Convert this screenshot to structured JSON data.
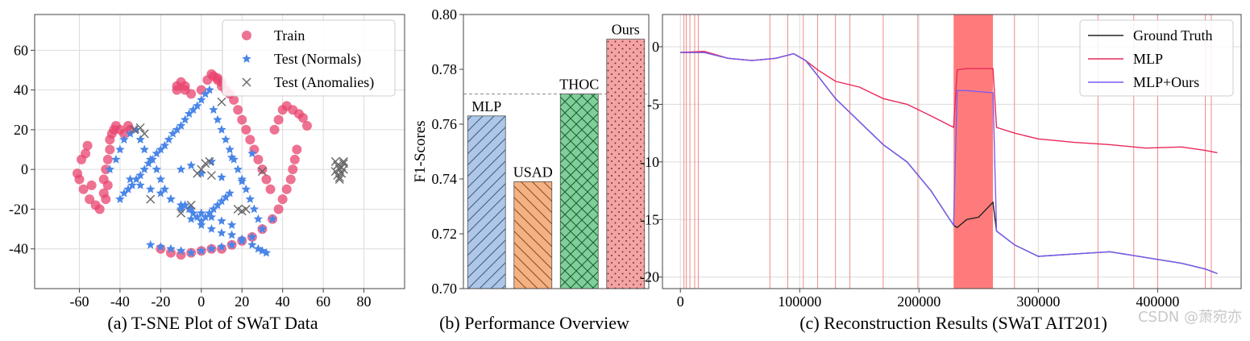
{
  "chart_data": [
    {
      "type": "scatter",
      "title": "(a) T-SNE Plot of SWaT Data",
      "xlim": [
        -82,
        100
      ],
      "ylim": [
        -60,
        78
      ],
      "xticks": [
        -60,
        -40,
        -20,
        0,
        20,
        40,
        60,
        80
      ],
      "yticks": [
        -40,
        -20,
        0,
        20,
        40,
        60
      ],
      "grid": true,
      "legend": {
        "position": "top-right"
      },
      "series": [
        {
          "name": "Train",
          "marker": "circle",
          "color": "#e8436e",
          "x": [
            -60,
            -58,
            -55,
            -52,
            -50,
            -48,
            -48,
            -47,
            -46,
            -45,
            -45,
            -44,
            -43,
            -42,
            -40,
            -38,
            -36,
            -35,
            -12,
            -8,
            -5,
            0,
            3,
            6,
            8,
            10,
            12,
            14,
            16,
            18,
            20,
            22,
            24,
            26,
            28,
            30,
            32,
            34,
            36,
            38,
            40,
            42,
            45,
            48,
            50,
            52,
            -20,
            -15,
            -10,
            -5,
            0,
            5,
            10,
            15,
            20,
            25,
            30,
            35,
            38,
            40,
            42,
            44,
            45,
            46,
            47,
            -12,
            -10,
            -8,
            5,
            8,
            10,
            -61,
            -59,
            -57,
            -56,
            -54,
            -47,
            -46
          ],
          "y": [
            -5,
            -10,
            -15,
            -18,
            -20,
            -12,
            -5,
            0,
            5,
            10,
            15,
            18,
            20,
            22,
            20,
            18,
            22,
            20,
            40,
            42,
            38,
            40,
            45,
            47,
            45,
            42,
            40,
            38,
            35,
            30,
            25,
            20,
            15,
            10,
            5,
            0,
            -5,
            -10,
            20,
            25,
            30,
            32,
            30,
            28,
            26,
            22,
            -40,
            -42,
            -43,
            -42,
            -41,
            -40,
            -40,
            -38,
            -36,
            -34,
            -30,
            -25,
            -20,
            -15,
            -10,
            -5,
            0,
            5,
            10,
            42,
            44,
            40,
            48,
            46,
            44,
            -2,
            5,
            8,
            12,
            -8,
            -15,
            -8
          ]
        },
        {
          "name": "Test (Normals)",
          "marker": "star",
          "color": "#4a86e8",
          "x": [
            -45,
            -42,
            -40,
            -38,
            -35,
            -32,
            -30,
            -28,
            -25,
            -22,
            -20,
            -18,
            -15,
            -10,
            -5,
            0,
            5,
            10,
            15,
            20,
            25,
            28,
            30,
            32,
            -35,
            -30,
            -25,
            -20,
            -15,
            -10,
            -5,
            0,
            5,
            10,
            15,
            -40,
            -38,
            -36,
            -34,
            -32,
            -30,
            -28,
            -26,
            -24,
            -22,
            -20,
            -18,
            -16,
            -14,
            -12,
            -10,
            -8,
            -6,
            -4,
            -2,
            0,
            2,
            4,
            6,
            8,
            10,
            12,
            14,
            16,
            18,
            20,
            22,
            24,
            26,
            28,
            30,
            -25,
            -20,
            -15,
            -10,
            -5,
            0,
            5,
            10,
            15,
            20,
            25,
            30,
            35,
            -10,
            -5,
            0,
            5,
            10,
            15,
            20,
            25,
            -8,
            -6,
            -4,
            -2,
            0,
            2,
            4,
            6,
            8,
            10,
            12,
            14
          ],
          "y": [
            0,
            5,
            10,
            15,
            18,
            20,
            15,
            10,
            5,
            0,
            -5,
            -10,
            -15,
            -20,
            -25,
            -28,
            -30,
            -32,
            -33,
            -35,
            -38,
            -40,
            -41,
            -42,
            -5,
            -8,
            -10,
            -12,
            -15,
            -18,
            -20,
            -22,
            -24,
            -26,
            -28,
            -15,
            -12,
            -10,
            -8,
            -5,
            -3,
            0,
            3,
            5,
            8,
            10,
            12,
            15,
            18,
            20,
            22,
            25,
            28,
            30,
            32,
            35,
            38,
            40,
            30,
            25,
            20,
            15,
            10,
            5,
            0,
            -5,
            -10,
            -15,
            -20,
            -25,
            -30,
            -38,
            -39,
            -40,
            -41,
            -42,
            -41,
            -40,
            -39,
            -38,
            -36,
            -34,
            -30,
            -25,
            0,
            2,
            -2,
            4,
            -4,
            6,
            -6,
            8,
            -18,
            -20,
            -22,
            -24,
            -26,
            -24,
            -22,
            -20,
            -18,
            -16,
            -14,
            -12
          ]
        },
        {
          "name": "Test (Anomalies)",
          "marker": "x",
          "color": "#666666",
          "x": [
            -33,
            -30,
            -28,
            -25,
            0,
            2,
            4,
            -2,
            5,
            18,
            20,
            22,
            30,
            10,
            -5,
            -10,
            66,
            67,
            68,
            69,
            70,
            66,
            68,
            70,
            67,
            69,
            68,
            70
          ],
          "y": [
            20,
            21,
            18,
            -15,
            0,
            3,
            4,
            -2,
            -3,
            -20,
            -21,
            -20,
            -1,
            34,
            -18,
            -22,
            4,
            2,
            0,
            -2,
            3,
            -1,
            -4,
            4,
            -3,
            1,
            -5,
            0
          ]
        }
      ]
    },
    {
      "type": "bar",
      "title": "(b) Performance Overview",
      "ylabel": "F1-Scores",
      "ylim": [
        0.7,
        0.8
      ],
      "yticks": [
        0.7,
        0.72,
        0.74,
        0.76,
        0.78,
        0.8
      ],
      "ytick_labels": [
        "0.70",
        "0.72",
        "0.74",
        "0.76",
        "0.78",
        "0.80"
      ],
      "categories": [
        "MLP",
        "USAD",
        "THOC",
        "Ours"
      ],
      "values": [
        0.763,
        0.739,
        0.771,
        0.791
      ],
      "colors": [
        "#aec7e8",
        "#f4b183",
        "#7fcf9a",
        "#f4a3a3"
      ],
      "hatches": [
        "diagonal",
        "back-diagonal",
        "cross",
        "dots"
      ],
      "reference_line": 0.771
    },
    {
      "type": "line",
      "title": "(c) Reconstruction Results (SWaT AIT201)",
      "xlim": [
        -15000,
        470000
      ],
      "ylim": [
        -21,
        2.8
      ],
      "xticks": [
        0,
        100000,
        200000,
        300000,
        400000
      ],
      "yticks": [
        0,
        -5,
        -10,
        -15,
        -20
      ],
      "grid": true,
      "legend": {
        "position": "top-right"
      },
      "anomaly_band": [
        229000,
        262000
      ],
      "anomaly_lines": [
        3000,
        5000,
        8000,
        12000,
        15000,
        75000,
        90000,
        103000,
        115000,
        130000,
        142000,
        170000,
        199000,
        280000,
        350000,
        380000,
        400000,
        440000,
        445000
      ],
      "series": [
        {
          "name": "Ground Truth",
          "color": "#222222",
          "x": [
            0,
            20000,
            40000,
            60000,
            80000,
            95000,
            105000,
            115000,
            130000,
            150000,
            170000,
            190000,
            210000,
            229000,
            232000,
            240000,
            250000,
            262000,
            265000,
            280000,
            300000,
            330000,
            360000,
            390000,
            420000,
            440000,
            450000
          ],
          "y": [
            -0.5,
            -0.5,
            -1.0,
            -1.2,
            -1.0,
            -0.6,
            -1.2,
            -2.5,
            -4.5,
            -6.5,
            -8.5,
            -10.0,
            -12.5,
            -15.5,
            -15.7,
            -15.0,
            -14.8,
            -13.5,
            -16.0,
            -17.2,
            -18.2,
            -18.0,
            -17.8,
            -18.3,
            -18.8,
            -19.3,
            -19.7
          ]
        },
        {
          "name": "MLP",
          "color": "#e8295a",
          "x": [
            0,
            20000,
            40000,
            60000,
            80000,
            95000,
            105000,
            115000,
            130000,
            150000,
            170000,
            190000,
            210000,
            229000,
            232000,
            240000,
            250000,
            262000,
            265000,
            280000,
            300000,
            330000,
            360000,
            390000,
            420000,
            440000,
            450000
          ],
          "y": [
            -0.5,
            -0.4,
            -1.0,
            -1.2,
            -1.0,
            -0.6,
            -1.2,
            -2.0,
            -3.0,
            -3.5,
            -4.5,
            -5.0,
            -6.0,
            -7.0,
            -2.0,
            -1.9,
            -1.9,
            -1.9,
            -7.0,
            -7.5,
            -8.0,
            -8.3,
            -8.5,
            -8.8,
            -8.7,
            -9.0,
            -9.2
          ]
        },
        {
          "name": "MLP+Ours",
          "color": "#7b5cf0",
          "x": [
            0,
            20000,
            40000,
            60000,
            80000,
            95000,
            105000,
            115000,
            130000,
            150000,
            170000,
            190000,
            210000,
            229000,
            232000,
            240000,
            250000,
            262000,
            265000,
            280000,
            300000,
            330000,
            360000,
            390000,
            420000,
            440000,
            450000
          ],
          "y": [
            -0.5,
            -0.5,
            -1.0,
            -1.2,
            -1.0,
            -0.6,
            -1.2,
            -2.5,
            -4.5,
            -6.5,
            -8.5,
            -10.0,
            -12.5,
            -15.5,
            -3.8,
            -3.8,
            -3.9,
            -4.0,
            -16.0,
            -17.2,
            -18.2,
            -18.0,
            -17.8,
            -18.3,
            -18.8,
            -19.3,
            -19.7
          ]
        }
      ]
    }
  ],
  "watermark": "CSDN @萧宛亦"
}
